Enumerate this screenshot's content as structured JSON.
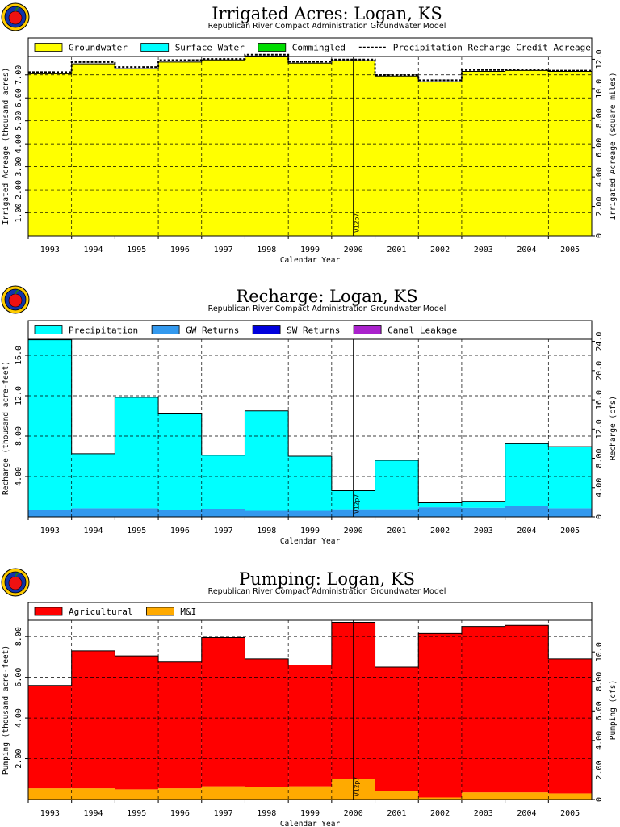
{
  "chart_data": [
    {
      "type": "area",
      "title": "Irrigated Acres: Logan, KS",
      "subtitle": "Republican River Compact Administration Groundwater Model",
      "xlabel": "Calendar Year",
      "ylabel": "Irrigated Acreage (thousand acres)",
      "ylabel_right": "Irrigated Acreage (square miles)",
      "categories": [
        "1993",
        "1994",
        "1995",
        "1996",
        "1997",
        "1998",
        "1999",
        "2000",
        "2001",
        "2002",
        "2003",
        "2004",
        "2005"
      ],
      "ylim": [
        0,
        7.8
      ],
      "yticks": [
        "1.00",
        "2.00",
        "3.00",
        "4.00",
        "5.00",
        "6.00",
        "7.00"
      ],
      "yticks_values": [
        1,
        2,
        3,
        4,
        5,
        6,
        7
      ],
      "yticks_right": [
        "0",
        "2.00",
        "4.00",
        "6.00",
        "8.00",
        "10.0",
        "12.0"
      ],
      "yticks_right_values": [
        0,
        2,
        4,
        6,
        8,
        10,
        12
      ],
      "right_scale": 1.5625,
      "grid": true,
      "legend_position": "top",
      "series": [
        {
          "name": "Groundwater",
          "color": "#ffff00",
          "values": [
            7.05,
            7.48,
            7.27,
            7.56,
            7.65,
            7.82,
            7.51,
            7.62,
            6.95,
            6.7,
            7.15,
            7.19,
            7.15
          ]
        },
        {
          "name": "Surface Water",
          "color": "#00ffff",
          "values": [
            0,
            0,
            0,
            0,
            0,
            0,
            0,
            0,
            0,
            0,
            0,
            0,
            0
          ]
        },
        {
          "name": "Commingled",
          "color": "#00dd00",
          "values": [
            0,
            0,
            0,
            0,
            0,
            0,
            0,
            0,
            0,
            0,
            0,
            0,
            0
          ]
        }
      ],
      "line_series": {
        "name": "Precipitation Recharge Credit Acreage",
        "values": [
          7.12,
          7.56,
          7.34,
          7.64,
          7.69,
          7.88,
          7.57,
          7.67,
          6.99,
          6.77,
          7.21,
          7.23,
          7.18
        ]
      },
      "marker": {
        "label": "V12p7",
        "at_index": 7.5
      }
    },
    {
      "type": "area",
      "title": "Recharge: Logan, KS",
      "subtitle": "Republican River Compact Administration Groundwater Model",
      "xlabel": "Calendar Year",
      "ylabel": "Recharge (thousand acre-feet)",
      "ylabel_right": "Recharge (cfs)",
      "categories": [
        "1993",
        "1994",
        "1995",
        "1996",
        "1997",
        "1998",
        "1999",
        "2000",
        "2001",
        "2002",
        "2003",
        "2004",
        "2005"
      ],
      "ylim": [
        0,
        17.6
      ],
      "yticks": [
        "4.00",
        "8.00",
        "12.0",
        "16.0"
      ],
      "yticks_values": [
        4,
        8,
        12,
        16
      ],
      "yticks_right": [
        "0",
        "4.00",
        "8.00",
        "12.0",
        "16.0",
        "20.0",
        "24.0"
      ],
      "yticks_right_values": [
        0,
        4,
        8,
        12,
        16,
        20,
        24
      ],
      "right_scale": 1.38,
      "grid": true,
      "legend_position": "top",
      "series": [
        {
          "name": "GW Returns",
          "color": "#3399ee",
          "values": [
            0.65,
            0.85,
            0.85,
            0.7,
            0.8,
            0.6,
            0.6,
            0.75,
            0.75,
            0.95,
            0.9,
            1.05,
            0.85
          ]
        },
        {
          "name": "Precipitation",
          "color": "#00ffff",
          "values": [
            16.9,
            5.4,
            11.0,
            9.5,
            5.3,
            9.9,
            5.4,
            1.85,
            4.85,
            0.45,
            0.65,
            6.2,
            6.1
          ]
        },
        {
          "name": "SW Returns",
          "color": "#0000dd",
          "values": [
            0,
            0,
            0,
            0,
            0,
            0,
            0,
            0,
            0,
            0,
            0,
            0,
            0
          ]
        },
        {
          "name": "Canal Leakage",
          "color": "#aa22cc",
          "values": [
            0,
            0,
            0,
            0,
            0,
            0,
            0,
            0,
            0,
            0,
            0,
            0,
            0
          ]
        }
      ],
      "legend_order": [
        "Precipitation",
        "GW Returns",
        "SW Returns",
        "Canal Leakage"
      ],
      "marker": {
        "label": "V12p7",
        "at_index": 7.5
      }
    },
    {
      "type": "area",
      "title": "Pumping: Logan, KS",
      "subtitle": "Republican River Compact Administration Groundwater Model",
      "xlabel": "Calendar Year",
      "ylabel": "Pumping (thousand acre-feet)",
      "ylabel_right": "Pumping (cfs)",
      "categories": [
        "1993",
        "1994",
        "1995",
        "1996",
        "1997",
        "1998",
        "1999",
        "2000",
        "2001",
        "2002",
        "2003",
        "2004",
        "2005"
      ],
      "ylim": [
        0,
        8.8
      ],
      "yticks": [
        "2.00",
        "4.00",
        "6.00",
        "8.00"
      ],
      "yticks_values": [
        2,
        4,
        6,
        8
      ],
      "yticks_right": [
        "0",
        "2.00",
        "4.00",
        "6.00",
        "8.00",
        "10.0"
      ],
      "yticks_right_values": [
        0,
        2,
        4,
        6,
        8,
        10
      ],
      "right_scale": 1.38,
      "grid": true,
      "legend_position": "top",
      "series": [
        {
          "name": "M&I",
          "color": "#ffaa00",
          "values": [
            0.55,
            0.55,
            0.5,
            0.55,
            0.65,
            0.6,
            0.65,
            1.0,
            0.4,
            0.1,
            0.35,
            0.35,
            0.3
          ]
        },
        {
          "name": "Agricultural",
          "color": "#ff0000",
          "values": [
            5.05,
            6.75,
            6.55,
            6.2,
            7.3,
            6.3,
            5.95,
            7.7,
            6.1,
            8.05,
            8.15,
            8.2,
            6.6
          ]
        }
      ],
      "legend_order": [
        "Agricultural",
        "M&I"
      ],
      "marker": {
        "label": "V12p7",
        "at_index": 7.5
      }
    }
  ]
}
